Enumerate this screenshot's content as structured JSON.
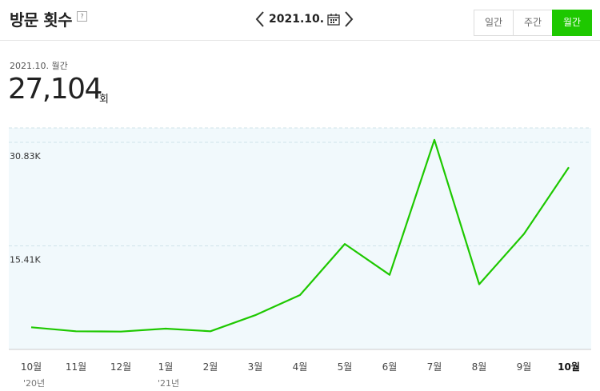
{
  "header": {
    "title": "방문 횟수",
    "help_icon": "?",
    "date": "2021.10.",
    "tabs": [
      {
        "label": "일간",
        "active": false
      },
      {
        "label": "주간",
        "active": false
      },
      {
        "label": "월간",
        "active": true
      }
    ]
  },
  "summary": {
    "period": "2021.10. 월간",
    "value": "27,104",
    "unit": "회"
  },
  "colors": {
    "line": "#1ec800",
    "plot_bg": "#f1f9fc",
    "grid": "#cfe3ea",
    "active_tab": "#1ec800"
  },
  "chart_data": {
    "type": "line",
    "categories": [
      "10월",
      "11월",
      "12월",
      "1월",
      "2월",
      "3월",
      "4월",
      "5월",
      "6월",
      "7월",
      "8월",
      "9월",
      "10월"
    ],
    "year_labels": [
      "'20년",
      "",
      "",
      "'21년",
      "",
      "",
      "",
      "",
      "",
      "",
      "",
      "",
      ""
    ],
    "yticks": [
      {
        "value": 15410,
        "label": "15.41K"
      },
      {
        "value": 30830,
        "label": "30.83K"
      }
    ],
    "ylim": [
      0,
      30830
    ],
    "series": [
      {
        "values": [
          3300,
          2700,
          2650,
          3100,
          2700,
          5100,
          8100,
          15700,
          11100,
          31200,
          9700,
          17200,
          27104
        ]
      }
    ],
    "grid": true
  }
}
